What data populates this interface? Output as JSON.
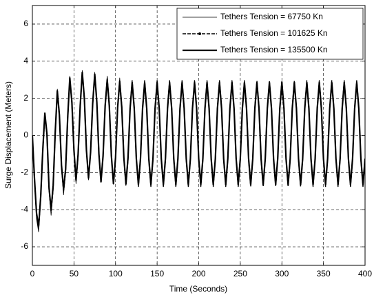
{
  "chart_data": {
    "type": "line",
    "xlabel": "Time (Seconds)",
    "ylabel": "Surge Displacement (Meters)",
    "xlim": [
      0,
      400
    ],
    "xticks": [
      0,
      50,
      100,
      150,
      200,
      250,
      300,
      350,
      400
    ],
    "ylim": [
      -7,
      7
    ],
    "yticks": [
      -6,
      -4,
      -2,
      0,
      2,
      4,
      6
    ],
    "grid": true,
    "legend": "upper right",
    "x": [
      0,
      2.5,
      5,
      7.5,
      10,
      12.5,
      15,
      17.5,
      20,
      22.5,
      25,
      27.5,
      30,
      32.5,
      35,
      37.5,
      40,
      42.5,
      45,
      47.5,
      50,
      52.5,
      55,
      57.5,
      60,
      62.5,
      65,
      67.5,
      70,
      72.5,
      75,
      77.5,
      80,
      82.5,
      85,
      87.5,
      90,
      92.5,
      95,
      97.5,
      100,
      102.5,
      105,
      107.5,
      110,
      112.5,
      115,
      117.5,
      120,
      122.5,
      125,
      127.5,
      130,
      132.5,
      135,
      137.5,
      140,
      142.5,
      145,
      147.5,
      150,
      152.5,
      155,
      157.5,
      160,
      162.5,
      165,
      167.5,
      170,
      172.5,
      175,
      177.5,
      180,
      182.5,
      185,
      187.5,
      190,
      192.5,
      195,
      197.5,
      200,
      202.5,
      205,
      207.5,
      210,
      212.5,
      215,
      217.5,
      220,
      222.5,
      225,
      227.5,
      230,
      232.5,
      235,
      237.5,
      240,
      242.5,
      245,
      247.5,
      250,
      252.5,
      255,
      257.5,
      260,
      262.5,
      265,
      267.5,
      270,
      272.5,
      275,
      277.5,
      280,
      282.5,
      285,
      287.5,
      290,
      292.5,
      295,
      297.5,
      300,
      302.5,
      305,
      307.5,
      310,
      312.5,
      315,
      317.5,
      320,
      322.5,
      325,
      327.5,
      330,
      332.5,
      335,
      337.5,
      340,
      342.5,
      345,
      347.5,
      350,
      352.5,
      355,
      357.5,
      360,
      362.5,
      365,
      367.5,
      370,
      372.5,
      375,
      377.5,
      380,
      382.5,
      385,
      387.5,
      390,
      392.5,
      395,
      397.5,
      400
    ],
    "series": [
      {
        "name": "Tethers Tension = 67750 Kn",
        "color": "#000000",
        "line_width": 0.8,
        "line_style": "solid",
        "values": [
          0,
          -2.5,
          -4.5,
          -5.2,
          -3.5,
          -1,
          1.2,
          0,
          -3,
          -4.3,
          -3,
          0,
          2.5,
          1,
          -1.8,
          -3.2,
          -2,
          0.8,
          3.2,
          1.7,
          -1,
          -2.6,
          -1.2,
          1.5,
          3.5,
          1.9,
          -0.9,
          -2.4,
          -1,
          1.7,
          3.4,
          1.9,
          -0.9,
          -2.4,
          -1.1,
          1.6,
          3.2,
          1.7,
          -1,
          -2.6,
          -1.2,
          1.5,
          3.1,
          1.6,
          -1.1,
          -2.7,
          -1.3,
          1.5,
          2.9,
          1.5,
          -1.3,
          -2.7,
          -1.3,
          1.5,
          2.9,
          1.5,
          -1.3,
          -2.7,
          -1.3,
          1.5,
          2.9,
          1.5,
          -1.3,
          -2.7,
          -1.3,
          1.5,
          2.9,
          1.5,
          -1.3,
          -2.7,
          -1.3,
          1.5,
          2.9,
          1.5,
          -1.3,
          -2.7,
          -1.3,
          1.5,
          2.9,
          1.5,
          -1.3,
          -2.7,
          -1.3,
          1.5,
          2.9,
          1.5,
          -1.3,
          -2.7,
          -1.3,
          1.5,
          2.9,
          1.5,
          -1.3,
          -2.7,
          -1.3,
          1.5,
          2.9,
          1.5,
          -1.3,
          -2.7,
          -1.3,
          1.5,
          2.9,
          1.5,
          -1.3,
          -2.7,
          -1.3,
          1.5,
          2.9,
          1.5,
          -1.3,
          -2.7,
          -1.3,
          1.5,
          2.9,
          1.5,
          -1.3,
          -2.7,
          -1.3,
          1.5,
          2.9,
          1.5,
          -1.3,
          -2.7,
          -1.3,
          1.5,
          2.9,
          1.5,
          -1.3,
          -2.7,
          -1.3,
          1.5,
          2.9,
          1.5,
          -1.3,
          -2.7,
          -1.3,
          1.5,
          2.9,
          1.5,
          -1.3,
          -2.7,
          -1.3,
          1.5,
          2.9,
          1.5,
          -1.3,
          -2.7,
          -1.3,
          1.5,
          2.9,
          1.5,
          -1.3,
          -2.7,
          -1.3,
          1.5,
          2.9,
          1.5,
          -1.3,
          -2.7,
          -1.3
        ]
      },
      {
        "name": "Tethers Tension = 101625 Kn",
        "color": "#000000",
        "line_width": 1.5,
        "line_style": "dashed",
        "values": [
          0,
          -2.4,
          -4.3,
          -5,
          -3.4,
          -0.9,
          1.1,
          0,
          -2.9,
          -4.1,
          -2.8,
          0.1,
          2.4,
          1,
          -1.7,
          -3,
          -1.9,
          0.9,
          3.1,
          1.7,
          -0.9,
          -2.5,
          -1.1,
          1.5,
          3.4,
          1.9,
          -0.8,
          -2.3,
          -0.9,
          1.7,
          3.3,
          1.8,
          -0.9,
          -2.4,
          -1.1,
          1.6,
          3.1,
          1.7,
          -1.1,
          -2.6,
          -1.2,
          1.5,
          3,
          1.6,
          -1.2,
          -2.7,
          -1.3,
          1.5,
          2.95,
          1.5,
          -1.3,
          -2.75,
          -1.3,
          1.5,
          2.95,
          1.5,
          -1.3,
          -2.75,
          -1.3,
          1.5,
          2.95,
          1.5,
          -1.3,
          -2.75,
          -1.3,
          1.5,
          2.95,
          1.5,
          -1.3,
          -2.75,
          -1.3,
          1.5,
          2.95,
          1.5,
          -1.3,
          -2.75,
          -1.3,
          1.5,
          2.95,
          1.5,
          -1.3,
          -2.75,
          -1.3,
          1.5,
          2.95,
          1.5,
          -1.3,
          -2.75,
          -1.3,
          1.5,
          2.95,
          1.5,
          -1.3,
          -2.75,
          -1.3,
          1.5,
          2.95,
          1.5,
          -1.3,
          -2.75,
          -1.3,
          1.5,
          2.95,
          1.5,
          -1.3,
          -2.75,
          -1.3,
          1.5,
          2.95,
          1.5,
          -1.3,
          -2.75,
          -1.3,
          1.5,
          2.95,
          1.5,
          -1.3,
          -2.75,
          -1.3,
          1.5,
          2.95,
          1.5,
          -1.3,
          -2.75,
          -1.3,
          1.5,
          2.95,
          1.5,
          -1.3,
          -2.75,
          -1.3,
          1.5,
          2.95,
          1.5,
          -1.3,
          -2.75,
          -1.3,
          1.5,
          2.95,
          1.5,
          -1.3,
          -2.75,
          -1.3,
          1.5,
          2.95,
          1.5,
          -1.3,
          -2.75,
          -1.3,
          1.5,
          2.95,
          1.5,
          -1.3,
          -2.75,
          -1.3,
          1.5,
          2.95,
          1.5,
          -1.3,
          -2.75,
          -1.3
        ]
      },
      {
        "name": "Tethers Tension = 135500 Kn",
        "color": "#000000",
        "line_width": 2.2,
        "line_style": "solid",
        "values": [
          0,
          -2.3,
          -4.2,
          -4.9,
          -3.3,
          -0.8,
          1.2,
          0.1,
          -2.8,
          -4,
          -2.7,
          0.2,
          2.4,
          1.1,
          -1.6,
          -2.9,
          -1.8,
          1,
          3.1,
          1.8,
          -0.8,
          -2.4,
          -1,
          1.6,
          3.4,
          2,
          -0.8,
          -2.3,
          -0.9,
          1.7,
          3.3,
          1.8,
          -1,
          -2.5,
          -1.1,
          1.6,
          3,
          1.6,
          -1.1,
          -2.6,
          -1.2,
          1.5,
          2.9,
          1.5,
          -1.2,
          -2.6,
          -1.2,
          1.45,
          2.85,
          1.45,
          -1.25,
          -2.65,
          -1.25,
          1.45,
          2.85,
          1.45,
          -1.25,
          -2.65,
          -1.25,
          1.45,
          2.85,
          1.45,
          -1.25,
          -2.65,
          -1.25,
          1.45,
          2.85,
          1.45,
          -1.25,
          -2.65,
          -1.25,
          1.45,
          2.85,
          1.45,
          -1.25,
          -2.65,
          -1.25,
          1.45,
          2.85,
          1.45,
          -1.25,
          -2.65,
          -1.25,
          1.45,
          2.85,
          1.45,
          -1.25,
          -2.65,
          -1.25,
          1.45,
          2.85,
          1.45,
          -1.25,
          -2.65,
          -1.25,
          1.45,
          2.85,
          1.45,
          -1.25,
          -2.65,
          -1.25,
          1.45,
          2.85,
          1.45,
          -1.25,
          -2.65,
          -1.25,
          1.45,
          2.85,
          1.45,
          -1.25,
          -2.65,
          -1.25,
          1.45,
          2.85,
          1.45,
          -1.25,
          -2.65,
          -1.25,
          1.45,
          2.85,
          1.45,
          -1.25,
          -2.65,
          -1.25,
          1.45,
          2.85,
          1.45,
          -1.25,
          -2.65,
          -1.25,
          1.45,
          2.85,
          1.45,
          -1.25,
          -2.65,
          -1.25,
          1.45,
          2.85,
          1.45,
          -1.25,
          -2.65,
          -1.25,
          1.45,
          2.85,
          1.45,
          -1.25,
          -2.65,
          -1.25,
          1.45,
          2.85,
          1.45,
          -1.25,
          -2.65,
          -1.25,
          1.45,
          2.85,
          1.45,
          -1.25,
          -2.65,
          -1.25
        ]
      }
    ]
  }
}
